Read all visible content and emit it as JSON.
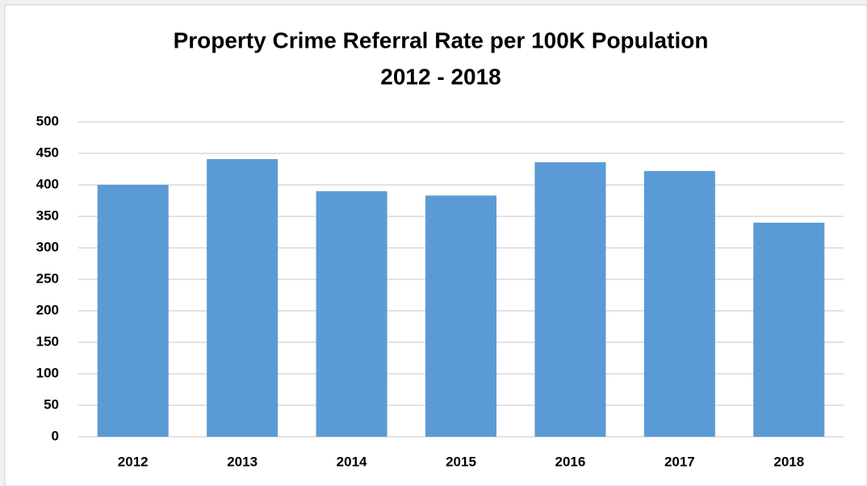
{
  "chart_data": {
    "type": "bar",
    "title": "Property Crime Referral Rate per 100K Population",
    "subtitle": "2012 - 2018",
    "categories": [
      "2012",
      "2013",
      "2014",
      "2015",
      "2016",
      "2017",
      "2018"
    ],
    "values": [
      400,
      441,
      390,
      383,
      436,
      422,
      340
    ],
    "color": "#5b9bd5",
    "ylim": [
      0,
      500
    ],
    "yticks": [
      0,
      50,
      100,
      150,
      200,
      250,
      300,
      350,
      400,
      450,
      500
    ],
    "grid": true
  }
}
